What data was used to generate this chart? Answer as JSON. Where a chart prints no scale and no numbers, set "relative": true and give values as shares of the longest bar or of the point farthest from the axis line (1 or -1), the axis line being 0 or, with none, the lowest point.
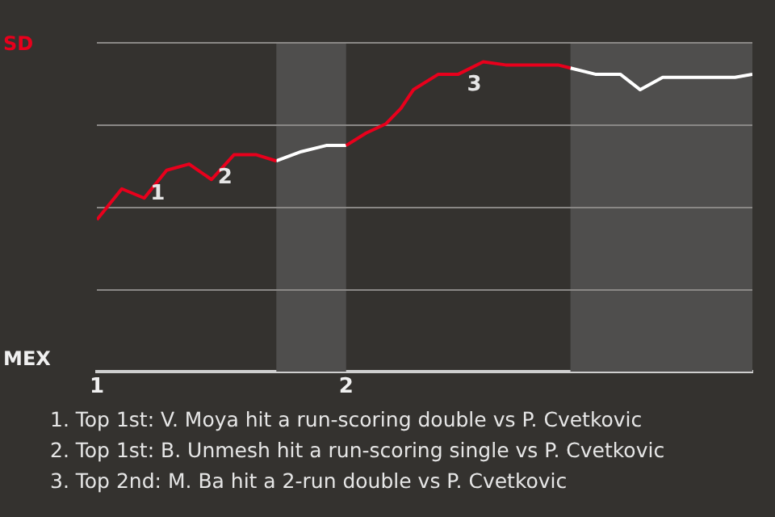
{
  "chart_data": {
    "type": "line",
    "xlim": [
      1,
      3.63
    ],
    "xticks": [
      1,
      2
    ],
    "relative": true,
    "grid": "y",
    "legend": false,
    "marker": "none",
    "line_style": "solid",
    "series": [
      {
        "color": "#e8001c",
        "x": [
          1.0,
          1.1,
          1.19,
          1.28,
          1.37,
          1.46,
          1.55,
          1.64,
          1.72,
          1.8,
          2.0,
          2.08,
          2.16,
          2.22,
          2.27,
          2.37,
          2.45,
          2.55,
          2.64,
          2.73,
          2.85,
          2.9
        ],
        "values": [
          0.49,
          0.59,
          0.56,
          0.65,
          0.67,
          0.62,
          0.7,
          0.7,
          0.68,
          null,
          0.73,
          0.77,
          0.8,
          0.85,
          0.91,
          0.96,
          0.96,
          1,
          0.99,
          0.99,
          0.99,
          0.98
        ]
      },
      {
        "color": "#ffffff",
        "x": [
          1.72,
          1.82,
          1.92,
          2.0,
          2.5,
          2.9,
          3.0,
          3.1,
          3.18,
          3.27,
          3.36,
          3.56,
          3.63
        ],
        "values": [
          0.68,
          0.71,
          0.73,
          0.73,
          null,
          0.98,
          0.96,
          0.96,
          0.91,
          0.95,
          0.95,
          0.95,
          0.96
        ]
      }
    ],
    "bands": [
      {
        "axis": "x",
        "from": 1.72,
        "to": 2,
        "color": "#4f4e4d"
      },
      {
        "axis": "x",
        "from": 2.9,
        "to": 3.63,
        "color": "#4f4e4d"
      }
    ],
    "annotations": [
      "SD",
      "MEX",
      {
        "text": "1",
        "x": 1.28,
        "y": 0.65
      },
      {
        "text": "2",
        "x": 1.55,
        "y": 0.7
      },
      {
        "text": "3",
        "x": 2.55,
        "y": 1
      },
      "1. Top 1st: V. Moya hit a run-scoring double vs P. Cvetkovic",
      "2. Top 1st: B. Unmesh hit a run-scoring single vs P. Cvetkovic",
      "3. Top 2nd: M. Ba hit a 2-run double vs P. Cvetkovic"
    ]
  }
}
